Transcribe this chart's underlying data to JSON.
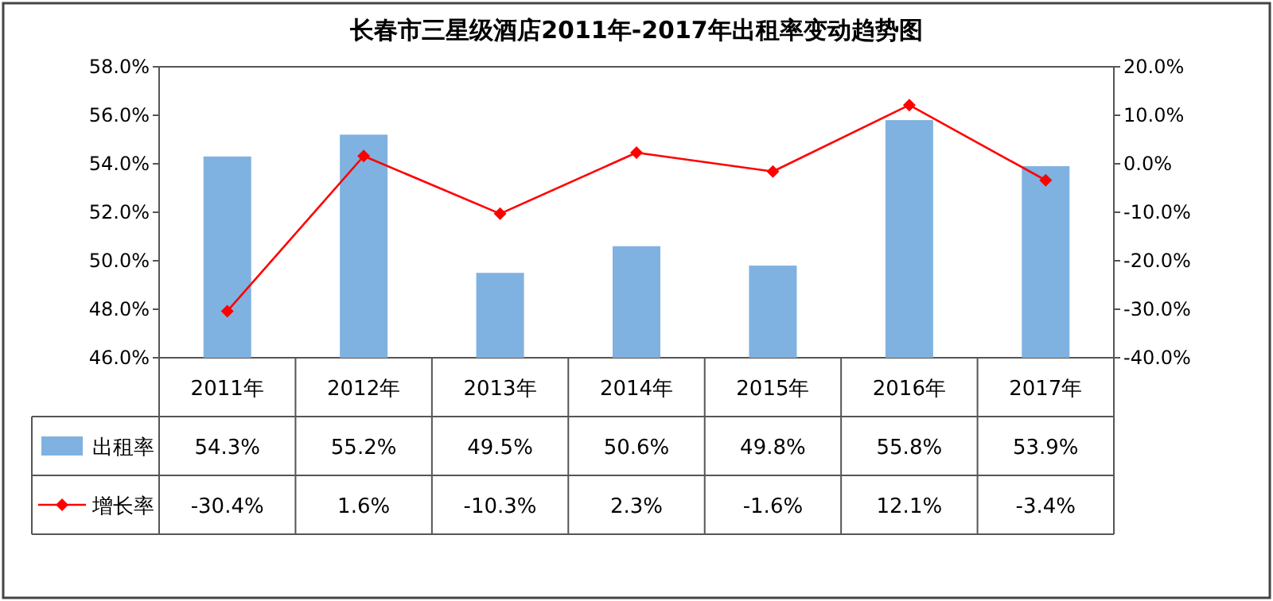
{
  "chart_data": {
    "type": "bar",
    "title": "长春市三星级酒店2011年-2017年出租率变动趋势图",
    "categories": [
      "2011年",
      "2012年",
      "2013年",
      "2014年",
      "2015年",
      "2016年",
      "2017年"
    ],
    "series": [
      {
        "name": "出租率",
        "color": "#7fb2e0",
        "values": [
          54.3,
          55.2,
          49.5,
          50.6,
          49.8,
          55.8,
          53.9
        ],
        "value_labels": [
          "54.3%",
          "55.2%",
          "49.5%",
          "50.6%",
          "49.8%",
          "55.8%",
          "53.9%"
        ]
      },
      {
        "name": "增长率",
        "type": "line",
        "axis": "y2",
        "color": "#ff0000",
        "marker": "diamond",
        "values": [
          -30.4,
          1.6,
          -10.3,
          2.3,
          -1.6,
          12.1,
          -3.4
        ],
        "value_labels": [
          "-30.4%",
          "1.6%",
          "-10.3%",
          "2.3%",
          "-1.6%",
          "12.1%",
          "-3.4%"
        ]
      }
    ],
    "ylim": [
      46,
      58
    ],
    "yticks": [
      {
        "value": 46,
        "label": "46.0%"
      },
      {
        "value": 48,
        "label": "48.0%"
      },
      {
        "value": 50,
        "label": "50.0%"
      },
      {
        "value": 52,
        "label": "52.0%"
      },
      {
        "value": 54,
        "label": "54.0%"
      },
      {
        "value": 56,
        "label": "56.0%"
      },
      {
        "value": 58,
        "label": "58.0%"
      }
    ],
    "y2lim": [
      -40,
      20
    ],
    "y2ticks": [
      {
        "value": -40,
        "label": "-40.0%"
      },
      {
        "value": -30,
        "label": "-30.0%"
      },
      {
        "value": -20,
        "label": "-20.0%"
      },
      {
        "value": -10,
        "label": "-10.0%"
      },
      {
        "value": 0,
        "label": "0.0%"
      },
      {
        "value": 10,
        "label": "10.0%"
      },
      {
        "value": 20,
        "label": "20.0%"
      }
    ],
    "legend": "bottom"
  }
}
